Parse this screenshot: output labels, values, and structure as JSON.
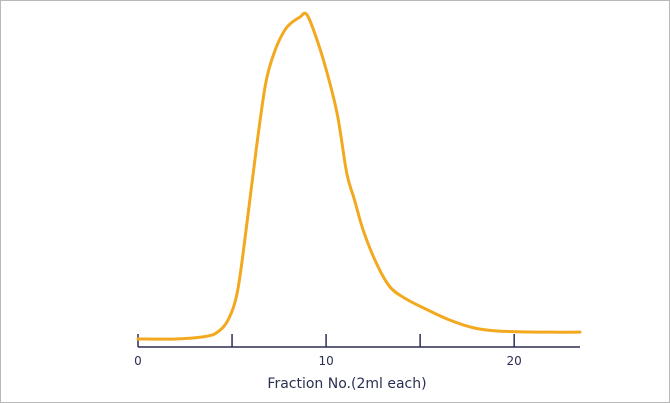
{
  "chart_data": {
    "type": "line",
    "title": "",
    "xlabel": "Fraction No.(2ml each)",
    "ylabel": "",
    "xlim": [
      0,
      23.5
    ],
    "grid": false,
    "legend": "none",
    "x_ticks": [
      {
        "value": 0,
        "label": "0"
      },
      {
        "value": 5,
        "label": ""
      },
      {
        "value": 10,
        "label": "10"
      },
      {
        "value": 15,
        "label": ""
      },
      {
        "value": 20,
        "label": "20"
      }
    ],
    "series": [
      {
        "color": "#f2a91f",
        "x": [
          0,
          2,
          3.5,
          4.2,
          4.8,
          5.3,
          5.8,
          6.3,
          6.8,
          7.3,
          7.8,
          8.2,
          8.6,
          8.95,
          9.4,
          10,
          10.6,
          11.1,
          11.5,
          12,
          12.7,
          13.4,
          14.2,
          15.2,
          16.5,
          17.8,
          19,
          20.5,
          22,
          23.5
        ],
        "y": [
          0,
          0,
          0.007,
          0.02,
          0.06,
          0.15,
          0.36,
          0.59,
          0.79,
          0.89,
          0.95,
          0.975,
          0.99,
          1.0,
          0.94,
          0.83,
          0.69,
          0.51,
          0.43,
          0.33,
          0.23,
          0.16,
          0.125,
          0.095,
          0.06,
          0.035,
          0.025,
          0.022,
          0.021,
          0.021
        ]
      }
    ]
  }
}
